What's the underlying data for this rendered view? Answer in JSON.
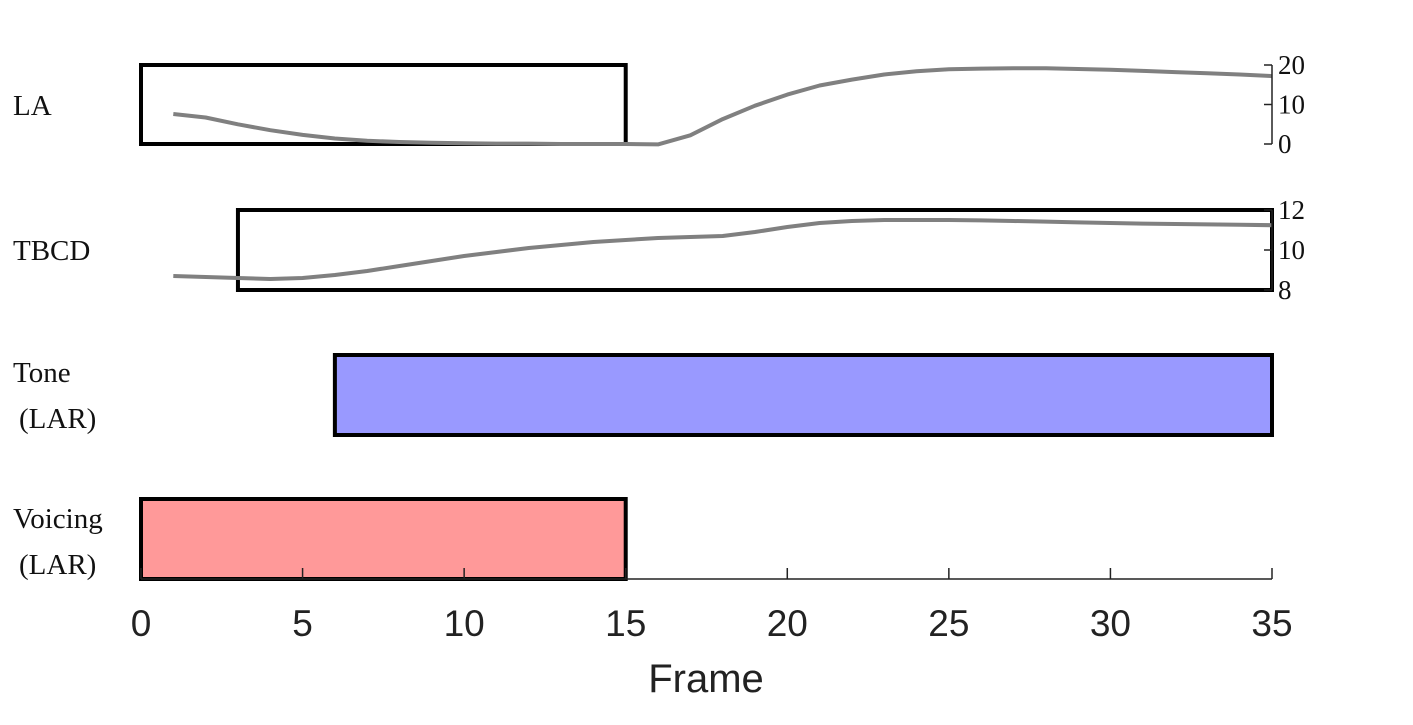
{
  "chart_data": {
    "type": "gestural-score",
    "xlabel": "Frame",
    "xlim": [
      0,
      35
    ],
    "xticks": [
      0,
      5,
      10,
      15,
      20,
      25,
      30,
      35
    ],
    "tiers": [
      {
        "name": "LA",
        "label_lines": [
          "LA"
        ],
        "box": {
          "start": 0,
          "end": 15,
          "fill": "none"
        },
        "yticks": [
          0,
          10,
          20
        ],
        "ylim": [
          0,
          20
        ],
        "trajectory": {
          "x": [
            1,
            2,
            3,
            4,
            5,
            6,
            7,
            8,
            9,
            10,
            11,
            12,
            13,
            14,
            15,
            16,
            17,
            18,
            19,
            20,
            21,
            22,
            23,
            24,
            25,
            26,
            27,
            28,
            29,
            30,
            31,
            32,
            33,
            34,
            35
          ],
          "y": [
            7.6,
            6.7,
            5.0,
            3.5,
            2.3,
            1.4,
            0.8,
            0.5,
            0.3,
            0.2,
            0.1,
            0.1,
            0.0,
            0.0,
            0.0,
            -0.1,
            2.2,
            6.3,
            9.7,
            12.5,
            14.8,
            16.3,
            17.6,
            18.4,
            18.9,
            19.1,
            19.2,
            19.2,
            19.0,
            18.8,
            18.5,
            18.2,
            17.9,
            17.6,
            17.2
          ]
        }
      },
      {
        "name": "TBCD",
        "label_lines": [
          "TBCD"
        ],
        "box": {
          "start": 3,
          "end": 35,
          "fill": "none"
        },
        "yticks": [
          8,
          10,
          12
        ],
        "ylim": [
          8,
          12
        ],
        "trajectory": {
          "x": [
            1,
            2,
            3,
            4,
            5,
            6,
            7,
            8,
            9,
            10,
            11,
            12,
            13,
            14,
            15,
            16,
            17,
            18,
            19,
            20,
            21,
            22,
            23,
            24,
            25,
            26,
            27,
            28,
            29,
            30,
            31,
            32,
            33,
            34,
            35
          ],
          "y": [
            8.7,
            8.65,
            8.6,
            8.55,
            8.6,
            8.75,
            8.95,
            9.2,
            9.45,
            9.7,
            9.9,
            10.1,
            10.25,
            10.4,
            10.5,
            10.6,
            10.65,
            10.7,
            10.9,
            11.15,
            11.35,
            11.45,
            11.5,
            11.5,
            11.5,
            11.48,
            11.45,
            11.42,
            11.38,
            11.35,
            11.32,
            11.3,
            11.28,
            11.26,
            11.24
          ]
        }
      },
      {
        "name": "Tone (LAR)",
        "label_lines": [
          "Tone",
          "(LAR)"
        ],
        "box": {
          "start": 6,
          "end": 35,
          "fill": "#9999ff"
        }
      },
      {
        "name": "Voicing (LAR)",
        "label_lines": [
          "Voicing",
          "(LAR)"
        ],
        "box": {
          "start": 0,
          "end": 15,
          "fill": "#ff9999"
        }
      }
    ],
    "colors": {
      "trajectory": "#808080",
      "box_edge": "#000000",
      "axis": "#222222"
    }
  }
}
